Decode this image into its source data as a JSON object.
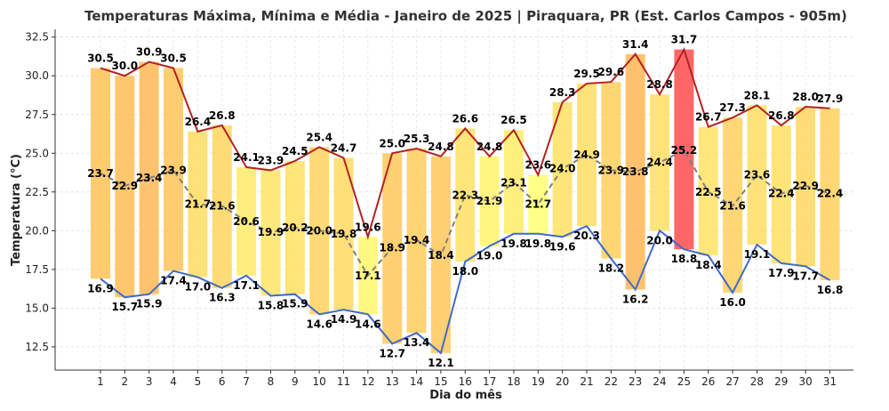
{
  "chart_data": {
    "type": "bar",
    "title": "Temperaturas Máxima, Mínima e Média - Janeiro de 2025 | Piraquara, PR (Est. Carlos Campos - 905m)",
    "xlabel": "Dia do mês",
    "ylabel": "Temperatura (°C)",
    "ylim": [
      11,
      33
    ],
    "yticks": [
      "12.5",
      "15.0",
      "17.5",
      "20.0",
      "22.5",
      "25.0",
      "27.5",
      "30.0",
      "32.5"
    ],
    "grid": true,
    "categories": [
      "1",
      "2",
      "3",
      "4",
      "5",
      "6",
      "7",
      "8",
      "9",
      "10",
      "11",
      "12",
      "13",
      "14",
      "15",
      "16",
      "17",
      "18",
      "19",
      "20",
      "21",
      "22",
      "23",
      "24",
      "25",
      "26",
      "27",
      "28",
      "29",
      "30",
      "31"
    ],
    "series": [
      {
        "values": [
          30.5,
          30.0,
          30.9,
          30.5,
          26.4,
          26.8,
          24.1,
          23.9,
          24.5,
          25.4,
          24.7,
          19.6,
          25.0,
          25.3,
          24.8,
          26.6,
          24.8,
          26.5,
          23.6,
          28.3,
          29.5,
          29.6,
          31.4,
          28.8,
          31.7,
          26.7,
          27.3,
          28.1,
          26.8,
          28.0,
          27.9
        ],
        "color": "#b22222"
      },
      {
        "values": [
          16.9,
          15.7,
          15.9,
          17.4,
          17.0,
          16.3,
          17.1,
          15.8,
          15.9,
          14.6,
          14.9,
          14.6,
          12.7,
          13.4,
          12.1,
          18.0,
          19.0,
          19.8,
          19.8,
          19.6,
          20.3,
          18.2,
          16.2,
          20.0,
          18.8,
          18.4,
          16.0,
          19.1,
          17.9,
          17.7,
          16.8
        ],
        "color": "#4169cd"
      },
      {
        "values": [
          23.7,
          22.9,
          23.4,
          23.9,
          21.7,
          21.6,
          20.6,
          19.9,
          20.2,
          20.0,
          19.8,
          17.1,
          18.9,
          19.4,
          18.4,
          22.3,
          21.9,
          23.1,
          21.7,
          24.0,
          24.9,
          23.9,
          23.8,
          24.4,
          25.2,
          22.5,
          21.6,
          23.6,
          22.4,
          22.9,
          22.4
        ],
        "color": "#808080"
      }
    ],
    "highlight_color": "#ff4c4c",
    "bar_colormap": [
      "#ffff66",
      "#ffb347"
    ]
  }
}
